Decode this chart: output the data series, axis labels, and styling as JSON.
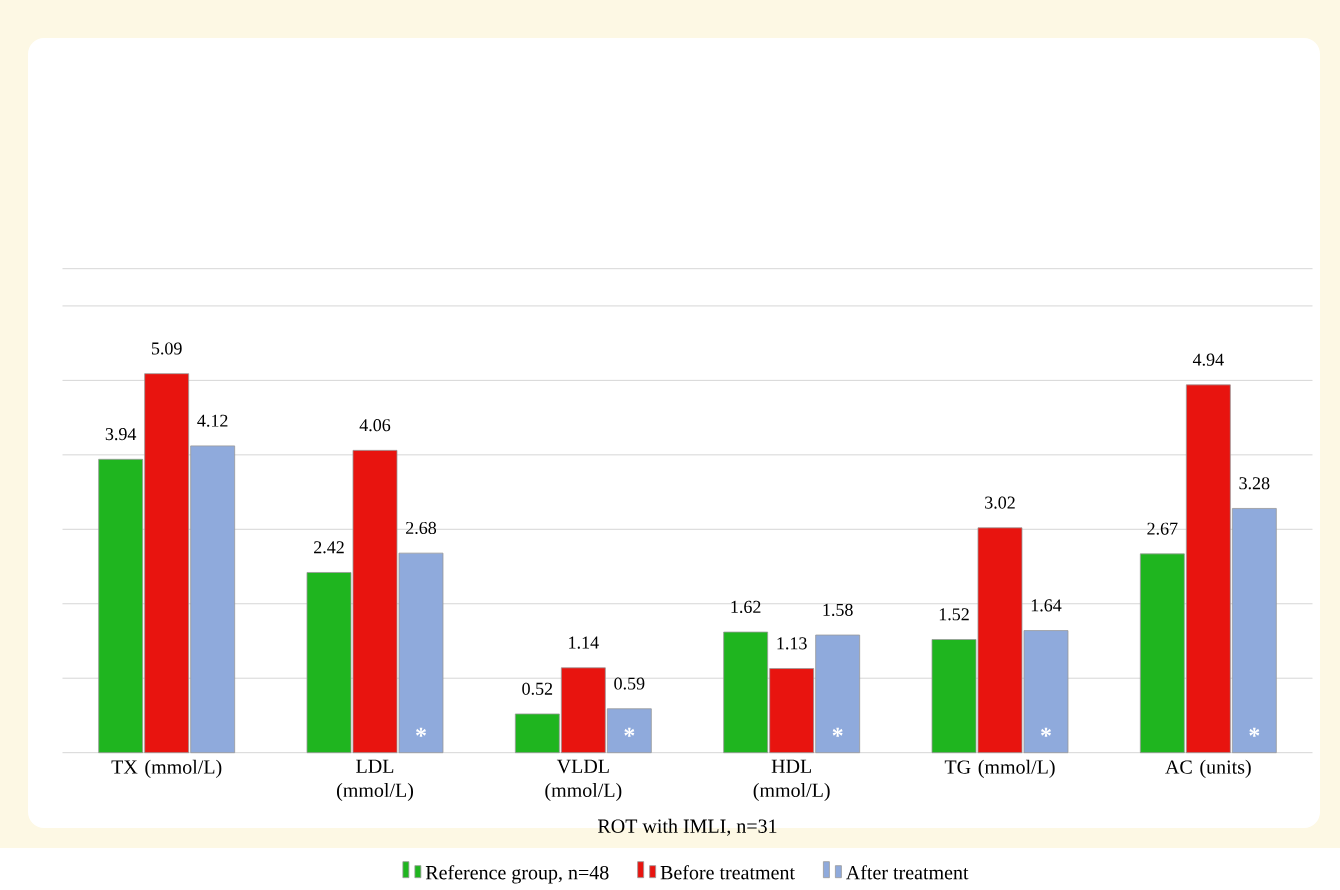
{
  "chart_data": {
    "type": "bar",
    "xlabel": "ROT with IMLI, n=31",
    "categories": [
      "TX (mmol/L)",
      "LDL (mmol/L)",
      "VLDL (mmol/L)",
      "HDL (mmol/L)",
      "TG (mmol/L)",
      "AC (units)"
    ],
    "series": [
      {
        "name": "Reference group, n=48",
        "color": "#1fb51f",
        "values": [
          3.94,
          2.42,
          0.52,
          1.62,
          1.52,
          2.67
        ]
      },
      {
        "name": "Before treatment",
        "color": "#e8140f",
        "values": [
          5.09,
          4.06,
          1.14,
          1.13,
          3.02,
          4.94
        ]
      },
      {
        "name": "After treatment",
        "color": "#8faadc",
        "values": [
          4.12,
          2.68,
          0.59,
          1.58,
          1.64,
          3.28
        ]
      }
    ],
    "ylim": [
      0,
      6.5
    ],
    "yticks": [
      {
        "value": 0,
        "label": null
      },
      {
        "value": 1,
        "label": null
      },
      {
        "value": 2,
        "label": null
      },
      {
        "value": 3,
        "label": null
      },
      {
        "value": 4,
        "label": null
      },
      {
        "value": 5,
        "label": null
      },
      {
        "value": 6,
        "label": null
      },
      {
        "value": 6.5,
        "label": null
      }
    ],
    "tick_labels": "x",
    "grid": "y",
    "legend": "bottom",
    "data_labels": true,
    "annotations": [
      "*",
      "*",
      "*",
      "*",
      "*"
    ]
  }
}
